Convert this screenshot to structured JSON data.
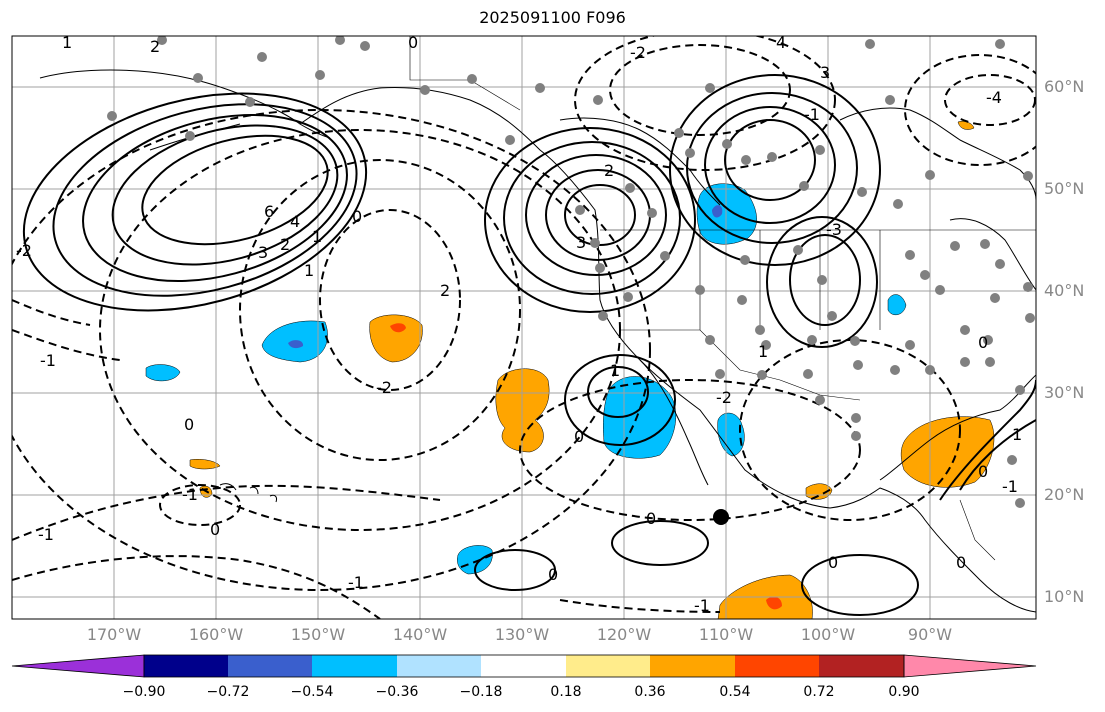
{
  "title": "2025091100 F096",
  "lon_labels": [
    "170°W",
    "160°W",
    "150°W",
    "140°W",
    "130°W",
    "120°W",
    "110°W",
    "100°W",
    "90°W"
  ],
  "lat_labels": [
    "60°N",
    "50°N",
    "40°N",
    "30°N",
    "20°N",
    "10°N"
  ],
  "colorbar": {
    "ticks": [
      "−0.90",
      "−0.72",
      "−0.54",
      "−0.36",
      "−0.18",
      "0.18",
      "0.36",
      "0.54",
      "0.72",
      "0.90"
    ],
    "colors": [
      "#9b30d9",
      "#00008b",
      "#3a5fcd",
      "#00bfff",
      "#b0e2ff",
      "#ffffff",
      "#ffec8b",
      "#ffa500",
      "#ff4500",
      "#b22222",
      "#ff88aa"
    ]
  },
  "contour_labels": [
    "4",
    "3",
    "2",
    "1",
    "0",
    "6",
    "1",
    "2",
    "3",
    "4",
    "2",
    "1",
    "0",
    "-2",
    "0",
    "-1",
    "-1",
    "-2",
    "0",
    "-1",
    "-1",
    "0",
    "1",
    "0",
    "0",
    "-1",
    "-2",
    "3",
    "2",
    "1",
    "-3",
    "-4",
    "0",
    "1",
    "0",
    "0",
    "0",
    "-1",
    "-2",
    "-1"
  ]
}
